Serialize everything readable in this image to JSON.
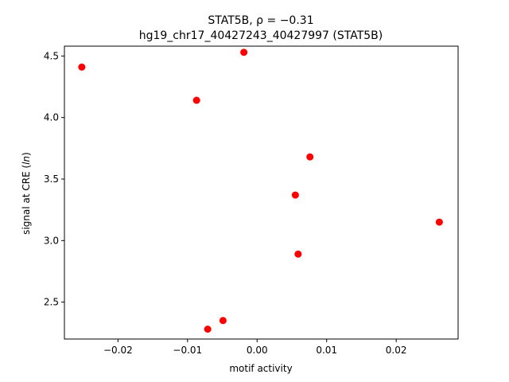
{
  "chart_data": {
    "type": "scatter",
    "title": [
      "STAT5B, ρ = −0.31",
      "hg19_chr17_40427243_40427997 (STAT5B)"
    ],
    "xlabel": "motif activity",
    "ylabel": "signal at CRE (",
    "ylabel_italic": "ln",
    "ylabel_close": ")",
    "xlim": [
      -0.0277,
      0.0289
    ],
    "ylim": [
      2.2,
      4.58
    ],
    "grid": false,
    "marker_color": "#ff0000",
    "x_ticks": [
      {
        "value": -0.02,
        "label": "−0.02"
      },
      {
        "value": -0.01,
        "label": "−0.01"
      },
      {
        "value": 0.0,
        "label": "0.00"
      },
      {
        "value": 0.01,
        "label": "0.01"
      },
      {
        "value": 0.02,
        "label": "0.02"
      }
    ],
    "y_ticks": [
      {
        "value": 2.5,
        "label": "2.5"
      },
      {
        "value": 3.0,
        "label": "3.0"
      },
      {
        "value": 3.5,
        "label": "3.5"
      },
      {
        "value": 4.0,
        "label": "4.0"
      },
      {
        "value": 4.5,
        "label": "4.5"
      }
    ],
    "points": [
      {
        "x": -0.0252,
        "y": 4.41
      },
      {
        "x": -0.0019,
        "y": 4.53
      },
      {
        "x": -0.0087,
        "y": 4.14
      },
      {
        "x": 0.0076,
        "y": 3.68
      },
      {
        "x": 0.0055,
        "y": 3.37
      },
      {
        "x": 0.0262,
        "y": 3.15
      },
      {
        "x": 0.0059,
        "y": 2.89
      },
      {
        "x": -0.0049,
        "y": 2.35
      },
      {
        "x": -0.0071,
        "y": 2.28
      }
    ]
  }
}
